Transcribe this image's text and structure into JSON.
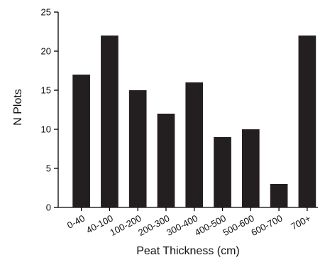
{
  "chart_data": {
    "type": "bar",
    "categories": [
      "0-40",
      "40-100",
      "100-200",
      "200-300",
      "300-400",
      "400-500",
      "500-600",
      "600-700",
      "700+"
    ],
    "values": [
      17,
      22,
      15,
      12,
      16,
      9,
      10,
      3,
      22
    ],
    "xlabel": "Peat Thickness (cm)",
    "ylabel": "N Plots",
    "ylim": [
      0,
      25
    ],
    "yticks": [
      0,
      5,
      10,
      15,
      20,
      25
    ],
    "grid": false,
    "colors": {
      "bar": "#231f20",
      "axis": "#000000"
    }
  }
}
